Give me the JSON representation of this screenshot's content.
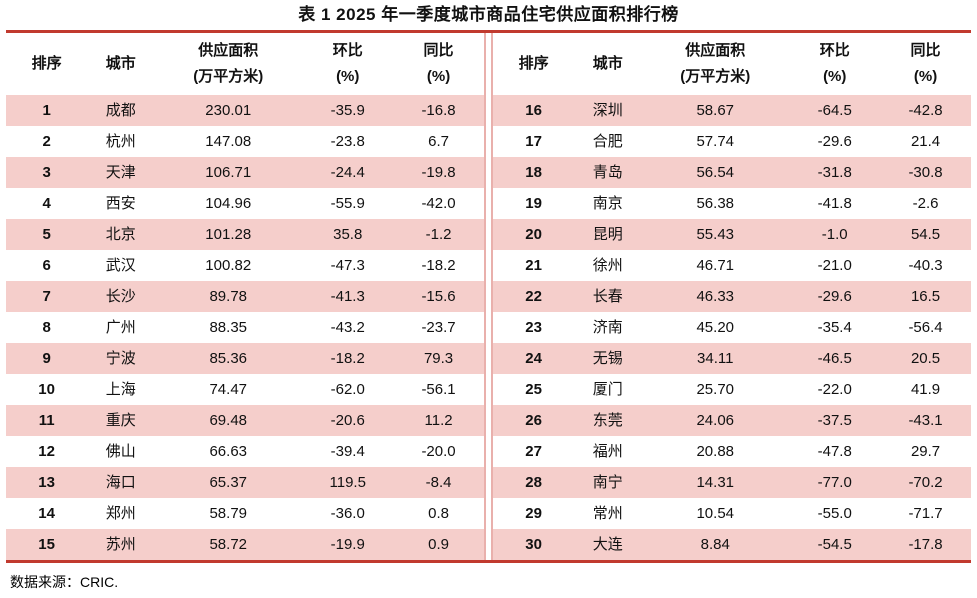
{
  "title": "表 1 2025 年一季度城市商品住宅供应面积排行榜",
  "footer": {
    "source_label": "数据来源：CRIC."
  },
  "colors": {
    "rule_red": "#c13a2e",
    "row_stripe_pink": "#f5cecb",
    "divider_pink": "#e9b0ac",
    "text": "#111111",
    "background": "#ffffff"
  },
  "columns": [
    {
      "key": "rank",
      "label": "排序",
      "label2": ""
    },
    {
      "key": "city",
      "label": "城市",
      "label2": ""
    },
    {
      "key": "supply",
      "label": "供应面积",
      "label2": "(万平方米)"
    },
    {
      "key": "mom",
      "label": "环比",
      "label2": "(%)"
    },
    {
      "key": "yoy",
      "label": "同比",
      "label2": "(%)"
    }
  ],
  "tables": [
    {
      "rows": [
        {
          "rank": "1",
          "city": "成都",
          "supply": "230.01",
          "mom": "-35.9",
          "yoy": "-16.8"
        },
        {
          "rank": "2",
          "city": "杭州",
          "supply": "147.08",
          "mom": "-23.8",
          "yoy": "6.7"
        },
        {
          "rank": "3",
          "city": "天津",
          "supply": "106.71",
          "mom": "-24.4",
          "yoy": "-19.8"
        },
        {
          "rank": "4",
          "city": "西安",
          "supply": "104.96",
          "mom": "-55.9",
          "yoy": "-42.0"
        },
        {
          "rank": "5",
          "city": "北京",
          "supply": "101.28",
          "mom": "35.8",
          "yoy": "-1.2"
        },
        {
          "rank": "6",
          "city": "武汉",
          "supply": "100.82",
          "mom": "-47.3",
          "yoy": "-18.2"
        },
        {
          "rank": "7",
          "city": "长沙",
          "supply": "89.78",
          "mom": "-41.3",
          "yoy": "-15.6"
        },
        {
          "rank": "8",
          "city": "广州",
          "supply": "88.35",
          "mom": "-43.2",
          "yoy": "-23.7"
        },
        {
          "rank": "9",
          "city": "宁波",
          "supply": "85.36",
          "mom": "-18.2",
          "yoy": "79.3"
        },
        {
          "rank": "10",
          "city": "上海",
          "supply": "74.47",
          "mom": "-62.0",
          "yoy": "-56.1"
        },
        {
          "rank": "11",
          "city": "重庆",
          "supply": "69.48",
          "mom": "-20.6",
          "yoy": "11.2"
        },
        {
          "rank": "12",
          "city": "佛山",
          "supply": "66.63",
          "mom": "-39.4",
          "yoy": "-20.0"
        },
        {
          "rank": "13",
          "city": "海口",
          "supply": "65.37",
          "mom": "119.5",
          "yoy": "-8.4"
        },
        {
          "rank": "14",
          "city": "郑州",
          "supply": "58.79",
          "mom": "-36.0",
          "yoy": "0.8"
        },
        {
          "rank": "15",
          "city": "苏州",
          "supply": "58.72",
          "mom": "-19.9",
          "yoy": "0.9"
        }
      ]
    },
    {
      "rows": [
        {
          "rank": "16",
          "city": "深圳",
          "supply": "58.67",
          "mom": "-64.5",
          "yoy": "-42.8"
        },
        {
          "rank": "17",
          "city": "合肥",
          "supply": "57.74",
          "mom": "-29.6",
          "yoy": "21.4"
        },
        {
          "rank": "18",
          "city": "青岛",
          "supply": "56.54",
          "mom": "-31.8",
          "yoy": "-30.8"
        },
        {
          "rank": "19",
          "city": "南京",
          "supply": "56.38",
          "mom": "-41.8",
          "yoy": "-2.6"
        },
        {
          "rank": "20",
          "city": "昆明",
          "supply": "55.43",
          "mom": "-1.0",
          "yoy": "54.5"
        },
        {
          "rank": "21",
          "city": "徐州",
          "supply": "46.71",
          "mom": "-21.0",
          "yoy": "-40.3"
        },
        {
          "rank": "22",
          "city": "长春",
          "supply": "46.33",
          "mom": "-29.6",
          "yoy": "16.5"
        },
        {
          "rank": "23",
          "city": "济南",
          "supply": "45.20",
          "mom": "-35.4",
          "yoy": "-56.4"
        },
        {
          "rank": "24",
          "city": "无锡",
          "supply": "34.11",
          "mom": "-46.5",
          "yoy": "20.5"
        },
        {
          "rank": "25",
          "city": "厦门",
          "supply": "25.70",
          "mom": "-22.0",
          "yoy": "41.9"
        },
        {
          "rank": "26",
          "city": "东莞",
          "supply": "24.06",
          "mom": "-37.5",
          "yoy": "-43.1"
        },
        {
          "rank": "27",
          "city": "福州",
          "supply": "20.88",
          "mom": "-47.8",
          "yoy": "29.7"
        },
        {
          "rank": "28",
          "city": "南宁",
          "supply": "14.31",
          "mom": "-77.0",
          "yoy": "-70.2"
        },
        {
          "rank": "29",
          "city": "常州",
          "supply": "10.54",
          "mom": "-55.0",
          "yoy": "-71.7"
        },
        {
          "rank": "30",
          "city": "大连",
          "supply": "8.84",
          "mom": "-54.5",
          "yoy": "-17.8"
        }
      ]
    }
  ]
}
